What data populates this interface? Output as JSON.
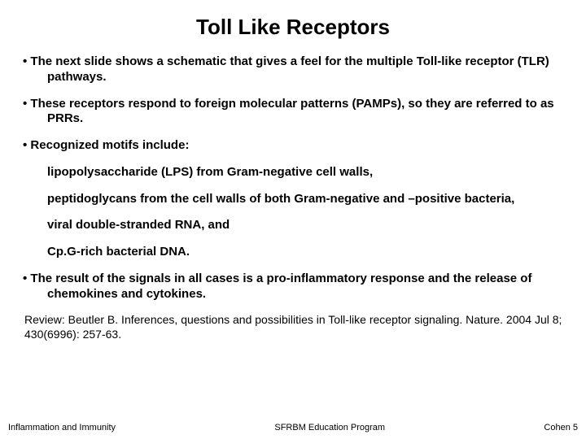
{
  "title": "Toll Like Receptors",
  "title_fontsize": 26,
  "body_fontsize": 15,
  "sub_fontsize": 15,
  "review_fontsize": 14,
  "footer_fontsize": 11,
  "colors": {
    "background": "#ffffff",
    "text": "#000000"
  },
  "bullets": [
    "The next slide shows a schematic that gives a feel for the multiple Toll-like receptor (TLR) pathways.",
    "These receptors respond to foreign molecular patterns (PAMPs), so they are referred to as PRRs.",
    "Recognized motifs include:"
  ],
  "subitems": [
    "lipopolysaccharide (LPS) from Gram-negative cell walls,",
    "peptidoglycans from the cell walls of both Gram-negative and –positive bacteria,",
    "viral double-stranded RNA, and",
    "Cp.G-rich bacterial DNA."
  ],
  "bullet_after": "The result of the signals in all cases is a pro-inflammatory response and the release of chemokines and cytokines.",
  "review": "Review: Beutler B. Inferences, questions and possibilities in Toll-like receptor signaling. Nature. 2004 Jul 8; 430(6996): 257-63.",
  "footer": {
    "left": "Inflammation and Immunity",
    "center": "SFRBM Education Program",
    "right": "Cohen 5"
  }
}
